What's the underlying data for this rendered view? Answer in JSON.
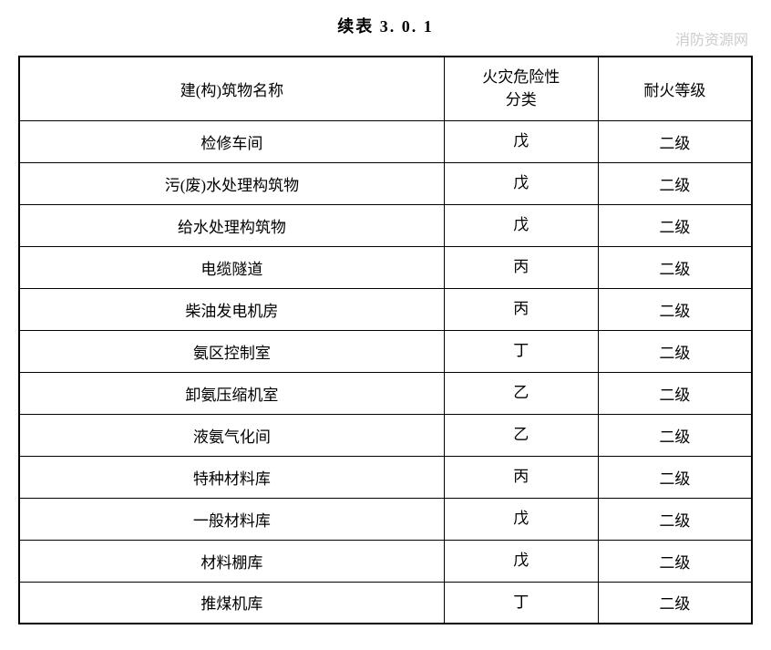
{
  "title": "续表 3. 0. 1",
  "watermark": "消防资源网",
  "table": {
    "columns": [
      {
        "label": "建(构)筑物名称"
      },
      {
        "label_line1": "火灾危险性",
        "label_line2": "分类"
      },
      {
        "label": "耐火等级"
      }
    ],
    "rows": [
      {
        "name": "检修车间",
        "category": "戊",
        "grade": "二级"
      },
      {
        "name": "污(废)水处理构筑物",
        "category": "戊",
        "grade": "二级"
      },
      {
        "name": "给水处理构筑物",
        "category": "戊",
        "grade": "二级"
      },
      {
        "name": "电缆隧道",
        "category": "丙",
        "grade": "二级"
      },
      {
        "name": "柴油发电机房",
        "category": "丙",
        "grade": "二级"
      },
      {
        "name": "氨区控制室",
        "category": "丁",
        "grade": "二级"
      },
      {
        "name": "卸氨压缩机室",
        "category": "乙",
        "grade": "二级"
      },
      {
        "name": "液氨气化间",
        "category": "乙",
        "grade": "二级"
      },
      {
        "name": "特种材料库",
        "category": "丙",
        "grade": "二级"
      },
      {
        "name": "一般材料库",
        "category": "戊",
        "grade": "二级"
      },
      {
        "name": "材料棚库",
        "category": "戊",
        "grade": "二级"
      },
      {
        "name": "推煤机库",
        "category": "丁",
        "grade": "二级"
      }
    ]
  }
}
